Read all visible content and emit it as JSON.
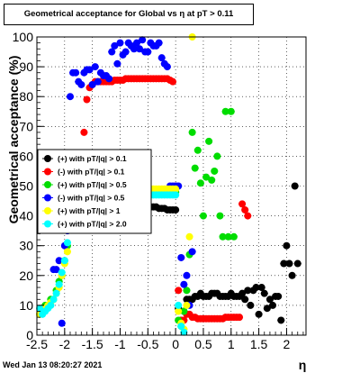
{
  "title": "Geometrical acceptance for Global vs η at pT > 0.11",
  "datestamp": "Wed Jan 13 08:20:27 2021",
  "chart_data": {
    "type": "scatter",
    "title": "Geometrical acceptance for Global vs η at pT > 0.11",
    "xlabel": "η",
    "ylabel": "Geometrical acceptance (%)",
    "xlim": [
      -2.5,
      2.35
    ],
    "ylim": [
      0,
      100
    ],
    "xticks": [
      -2.5,
      -2,
      -1.5,
      -1,
      -0.5,
      0,
      0.5,
      1,
      1.5,
      2
    ],
    "yticks": [
      0,
      10,
      20,
      30,
      40,
      50,
      60,
      70,
      80,
      90,
      100
    ],
    "grid": true,
    "legend_position": "middle-left",
    "series": [
      {
        "name": "(+) with pT/|q| > 0.1",
        "color": "#000000",
        "x": [
          -0.45,
          -0.4,
          -0.35,
          -0.3,
          -0.25,
          -0.2,
          -0.15,
          -0.1,
          -0.05,
          0.0,
          0.05,
          0.1,
          0.15,
          0.2,
          0.25,
          0.3,
          0.35,
          0.4,
          0.45,
          0.5,
          0.55,
          0.6,
          0.65,
          0.7,
          0.75,
          0.8,
          0.85,
          0.9,
          0.95,
          1.0,
          1.05,
          1.1,
          1.15,
          1.2,
          1.25,
          1.3,
          1.35,
          1.4,
          1.45,
          1.5,
          1.55,
          1.6,
          1.65,
          1.7,
          1.75,
          1.8,
          1.85,
          1.9,
          1.95,
          2.0,
          2.05,
          2.1,
          2.15,
          2.2
        ],
        "y": [
          43,
          43,
          43,
          42.5,
          42.5,
          42.5,
          42,
          42,
          42,
          42,
          9,
          5,
          8,
          12,
          12,
          12,
          13,
          13,
          14,
          13,
          13,
          13,
          14,
          14,
          14,
          13,
          13,
          13,
          13,
          14,
          13,
          13,
          13,
          14,
          12,
          15,
          10,
          15,
          16,
          7,
          16,
          14,
          9,
          12,
          10,
          13,
          13,
          5,
          24,
          30,
          24,
          20,
          50,
          24
        ]
      },
      {
        "name": "(-) with pT/|q| > 0.1",
        "color": "#ff0000",
        "x": [
          -1.65,
          -1.6,
          -1.55,
          -1.5,
          -1.45,
          -1.4,
          -1.35,
          -1.3,
          -1.25,
          -1.2,
          -1.15,
          -1.1,
          -1.05,
          -1.0,
          -0.95,
          -0.9,
          -0.85,
          -0.8,
          -0.75,
          -0.7,
          -0.65,
          -0.6,
          -0.55,
          -0.5,
          -0.45,
          -0.4,
          -0.35,
          -0.3,
          -0.25,
          -0.2,
          -0.15,
          -0.1,
          -0.05,
          0.0,
          0.05,
          0.1,
          0.15,
          0.2,
          0.25,
          0.3,
          0.35,
          0.4,
          0.45,
          0.5,
          0.55,
          0.6,
          0.65,
          0.7,
          0.75,
          0.8,
          0.85,
          0.9,
          0.95,
          1.0,
          1.05,
          1.1,
          1.15,
          1.2,
          1.25,
          1.3
        ],
        "y": [
          68,
          79,
          83,
          84,
          85,
          85,
          85,
          85,
          85,
          85,
          85,
          85.5,
          85.5,
          85.5,
          85.5,
          86,
          86,
          86,
          86,
          86,
          86,
          86,
          86,
          86,
          86,
          86,
          86,
          86,
          86,
          86,
          86,
          85.5,
          85,
          50,
          15,
          5,
          5,
          7,
          7,
          6,
          6,
          5.5,
          5.5,
          5.5,
          5.5,
          5.5,
          5.5,
          5.5,
          5.5,
          5.5,
          5.5,
          6,
          6,
          6,
          6,
          6,
          6,
          44,
          42,
          40
        ]
      },
      {
        "name": "(+) with pT/|q| > 0.5",
        "color": "#00dd00",
        "x": [
          -2.45,
          -2.4,
          -2.35,
          -2.3,
          -2.25,
          -2.2,
          -2.15,
          -2.1,
          -2.05,
          -2.0,
          -1.95,
          -0.45,
          -0.4,
          -0.35,
          -0.3,
          -0.25,
          -0.2,
          -0.15,
          -0.1,
          -0.05,
          0.0,
          0.05,
          0.1,
          0.15,
          0.2,
          0.25,
          0.3,
          0.35,
          0.4,
          0.45,
          0.5,
          0.55,
          0.6,
          0.65,
          0.7,
          0.75,
          0.8,
          0.85,
          0.9,
          0.95,
          1.0,
          1.05
        ],
        "y": [
          7,
          8,
          10,
          10,
          12,
          12,
          15,
          18,
          20,
          25,
          30,
          48,
          48,
          48,
          48,
          48,
          48,
          48,
          48,
          48,
          48,
          5,
          3,
          8,
          15,
          27,
          68,
          56,
          62,
          51,
          40,
          53,
          65,
          52,
          55,
          60,
          40,
          33,
          75,
          33,
          75,
          33
        ]
      },
      {
        "name": "(-) with pT/|q| > 0.5",
        "color": "#0000ff",
        "x": [
          -2.2,
          -2.15,
          -2.1,
          -2.05,
          -2.0,
          -1.95,
          -1.9,
          -1.85,
          -1.8,
          -1.75,
          -1.7,
          -1.65,
          -1.6,
          -1.55,
          -1.5,
          -1.45,
          -1.4,
          -1.35,
          -1.3,
          -1.25,
          -1.2,
          -1.15,
          -1.1,
          -1.05,
          -1.0,
          -0.95,
          -0.9,
          -0.85,
          -0.8,
          -0.75,
          -0.7,
          -0.65,
          -0.6,
          -0.55,
          -0.5,
          -0.45,
          -0.4,
          -0.35,
          -0.3,
          -0.25,
          -0.2,
          -0.15,
          -0.1,
          -0.05,
          0.0,
          0.05,
          0.1,
          0.15,
          0.2,
          0.25,
          0.3
        ],
        "y": [
          22,
          22,
          25,
          4,
          30,
          35,
          80,
          88,
          88,
          85,
          84,
          88,
          89,
          89,
          84,
          90,
          85,
          88,
          87,
          87,
          86,
          95,
          97,
          91,
          98,
          94,
          95,
          98,
          97,
          96,
          98,
          96,
          99,
          95,
          95,
          98,
          97,
          97,
          98,
          93,
          91,
          90,
          50,
          50,
          50,
          50,
          26,
          17,
          20,
          10,
          28
        ]
      },
      {
        "name": "(+) with pT/|q| > 1",
        "color": "#ffff00",
        "x": [
          -2.45,
          -2.4,
          -2.35,
          -2.3,
          -2.25,
          -2.2,
          -2.15,
          -2.1,
          -2.05,
          -2.0,
          -1.95,
          -0.45,
          -0.4,
          -0.35,
          -0.3,
          -0.25,
          -0.2,
          -0.15,
          -0.1,
          -0.05,
          0.0,
          0.05,
          0.1,
          0.15,
          0.2,
          0.25,
          0.3
        ],
        "y": [
          7,
          8,
          9,
          10,
          11,
          12,
          14,
          16,
          20,
          24,
          28,
          49,
          49,
          49,
          49,
          49,
          49,
          49,
          49,
          49,
          49,
          8,
          4,
          2,
          10,
          33,
          100
        ]
      },
      {
        "name": "(+) with pT/|q| > 2.0",
        "color": "#00ffff",
        "x": [
          -2.45,
          -2.4,
          -2.35,
          -2.3,
          -2.25,
          -2.2,
          -2.15,
          -2.1,
          -2.05,
          -2.0,
          -1.95,
          -0.45,
          -0.4,
          -0.35,
          -0.3,
          -0.25,
          -0.2,
          -0.15,
          -0.1,
          -0.05,
          0.0,
          0.05,
          0.1,
          0.15
        ],
        "y": [
          9,
          7,
          8,
          9,
          10,
          12,
          14,
          17,
          21,
          25,
          31,
          47,
          47,
          47,
          47,
          47,
          47,
          47,
          47,
          47,
          47,
          10,
          3,
          1
        ]
      }
    ]
  }
}
